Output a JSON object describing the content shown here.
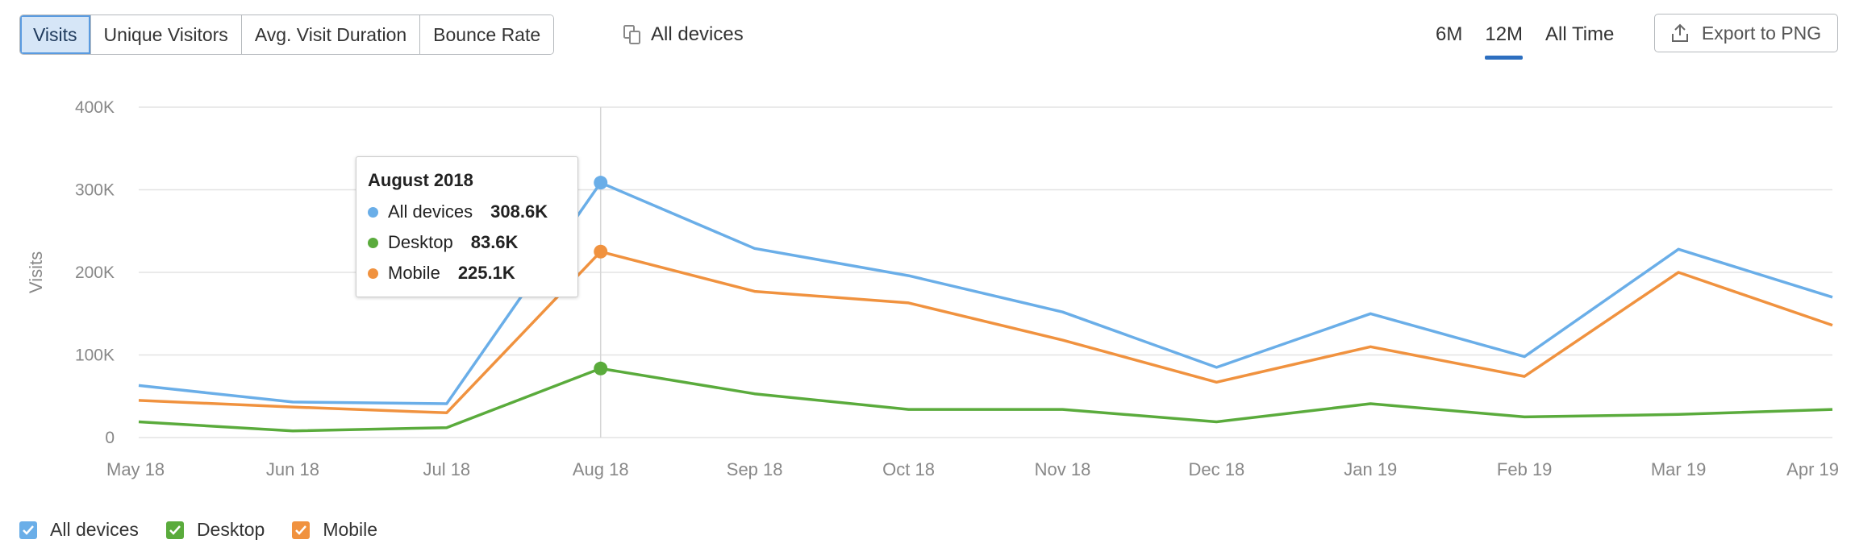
{
  "toolbar": {
    "metrics": [
      {
        "label": "Visits",
        "active": true
      },
      {
        "label": "Unique Visitors",
        "active": false
      },
      {
        "label": "Avg. Visit Duration",
        "active": false
      },
      {
        "label": "Bounce Rate",
        "active": false
      }
    ],
    "device_filter": {
      "label": "All devices",
      "icon": "devices-icon"
    },
    "ranges": [
      {
        "label": "6M",
        "active": false
      },
      {
        "label": "12M",
        "active": true
      },
      {
        "label": "All Time",
        "active": false
      }
    ],
    "export_label": "Export to PNG",
    "export_icon": "upload-icon"
  },
  "colors": {
    "all_devices": "#6aaee8",
    "desktop": "#5aab3c",
    "mobile": "#f0923f",
    "grid": "#e3e3e3",
    "crosshair": "#d5d5d5"
  },
  "chart_data": {
    "type": "line",
    "categories": [
      "May 18",
      "Jun 18",
      "Jul 18",
      "Aug 18",
      "Sep 18",
      "Oct 18",
      "Nov 18",
      "Dec 18",
      "Jan 19",
      "Feb 19",
      "Mar 19",
      "Apr 19"
    ],
    "series": [
      {
        "name": "All devices",
        "values": [
          63000,
          43000,
          41000,
          308600,
          229000,
          196000,
          152000,
          85000,
          150000,
          98000,
          228000,
          170000
        ]
      },
      {
        "name": "Desktop",
        "values": [
          19000,
          8000,
          12000,
          83600,
          53000,
          34000,
          34000,
          19000,
          41000,
          25000,
          28000,
          34000
        ]
      },
      {
        "name": "Mobile",
        "values": [
          45000,
          37000,
          30000,
          225100,
          177000,
          163000,
          118000,
          67000,
          110000,
          74000,
          200000,
          136000
        ]
      }
    ],
    "ylabel": "Visits",
    "ylim": [
      0,
      400000
    ],
    "yticks": [
      {
        "value": 0,
        "label": "0"
      },
      {
        "value": 100000,
        "label": "100K"
      },
      {
        "value": 200000,
        "label": "200K"
      },
      {
        "value": 300000,
        "label": "300K"
      },
      {
        "value": 400000,
        "label": "400K"
      }
    ],
    "grid": true,
    "legend": "bottom-left",
    "highlight_index": 3,
    "tooltip": {
      "title": "August 2018",
      "rows": [
        {
          "name": "All devices",
          "value": "308.6K"
        },
        {
          "name": "Desktop",
          "value": "83.6K"
        },
        {
          "name": "Mobile",
          "value": "225.1K"
        }
      ]
    }
  },
  "legend": [
    {
      "label": "All devices",
      "checked": true
    },
    {
      "label": "Desktop",
      "checked": true
    },
    {
      "label": "Mobile",
      "checked": true
    }
  ]
}
